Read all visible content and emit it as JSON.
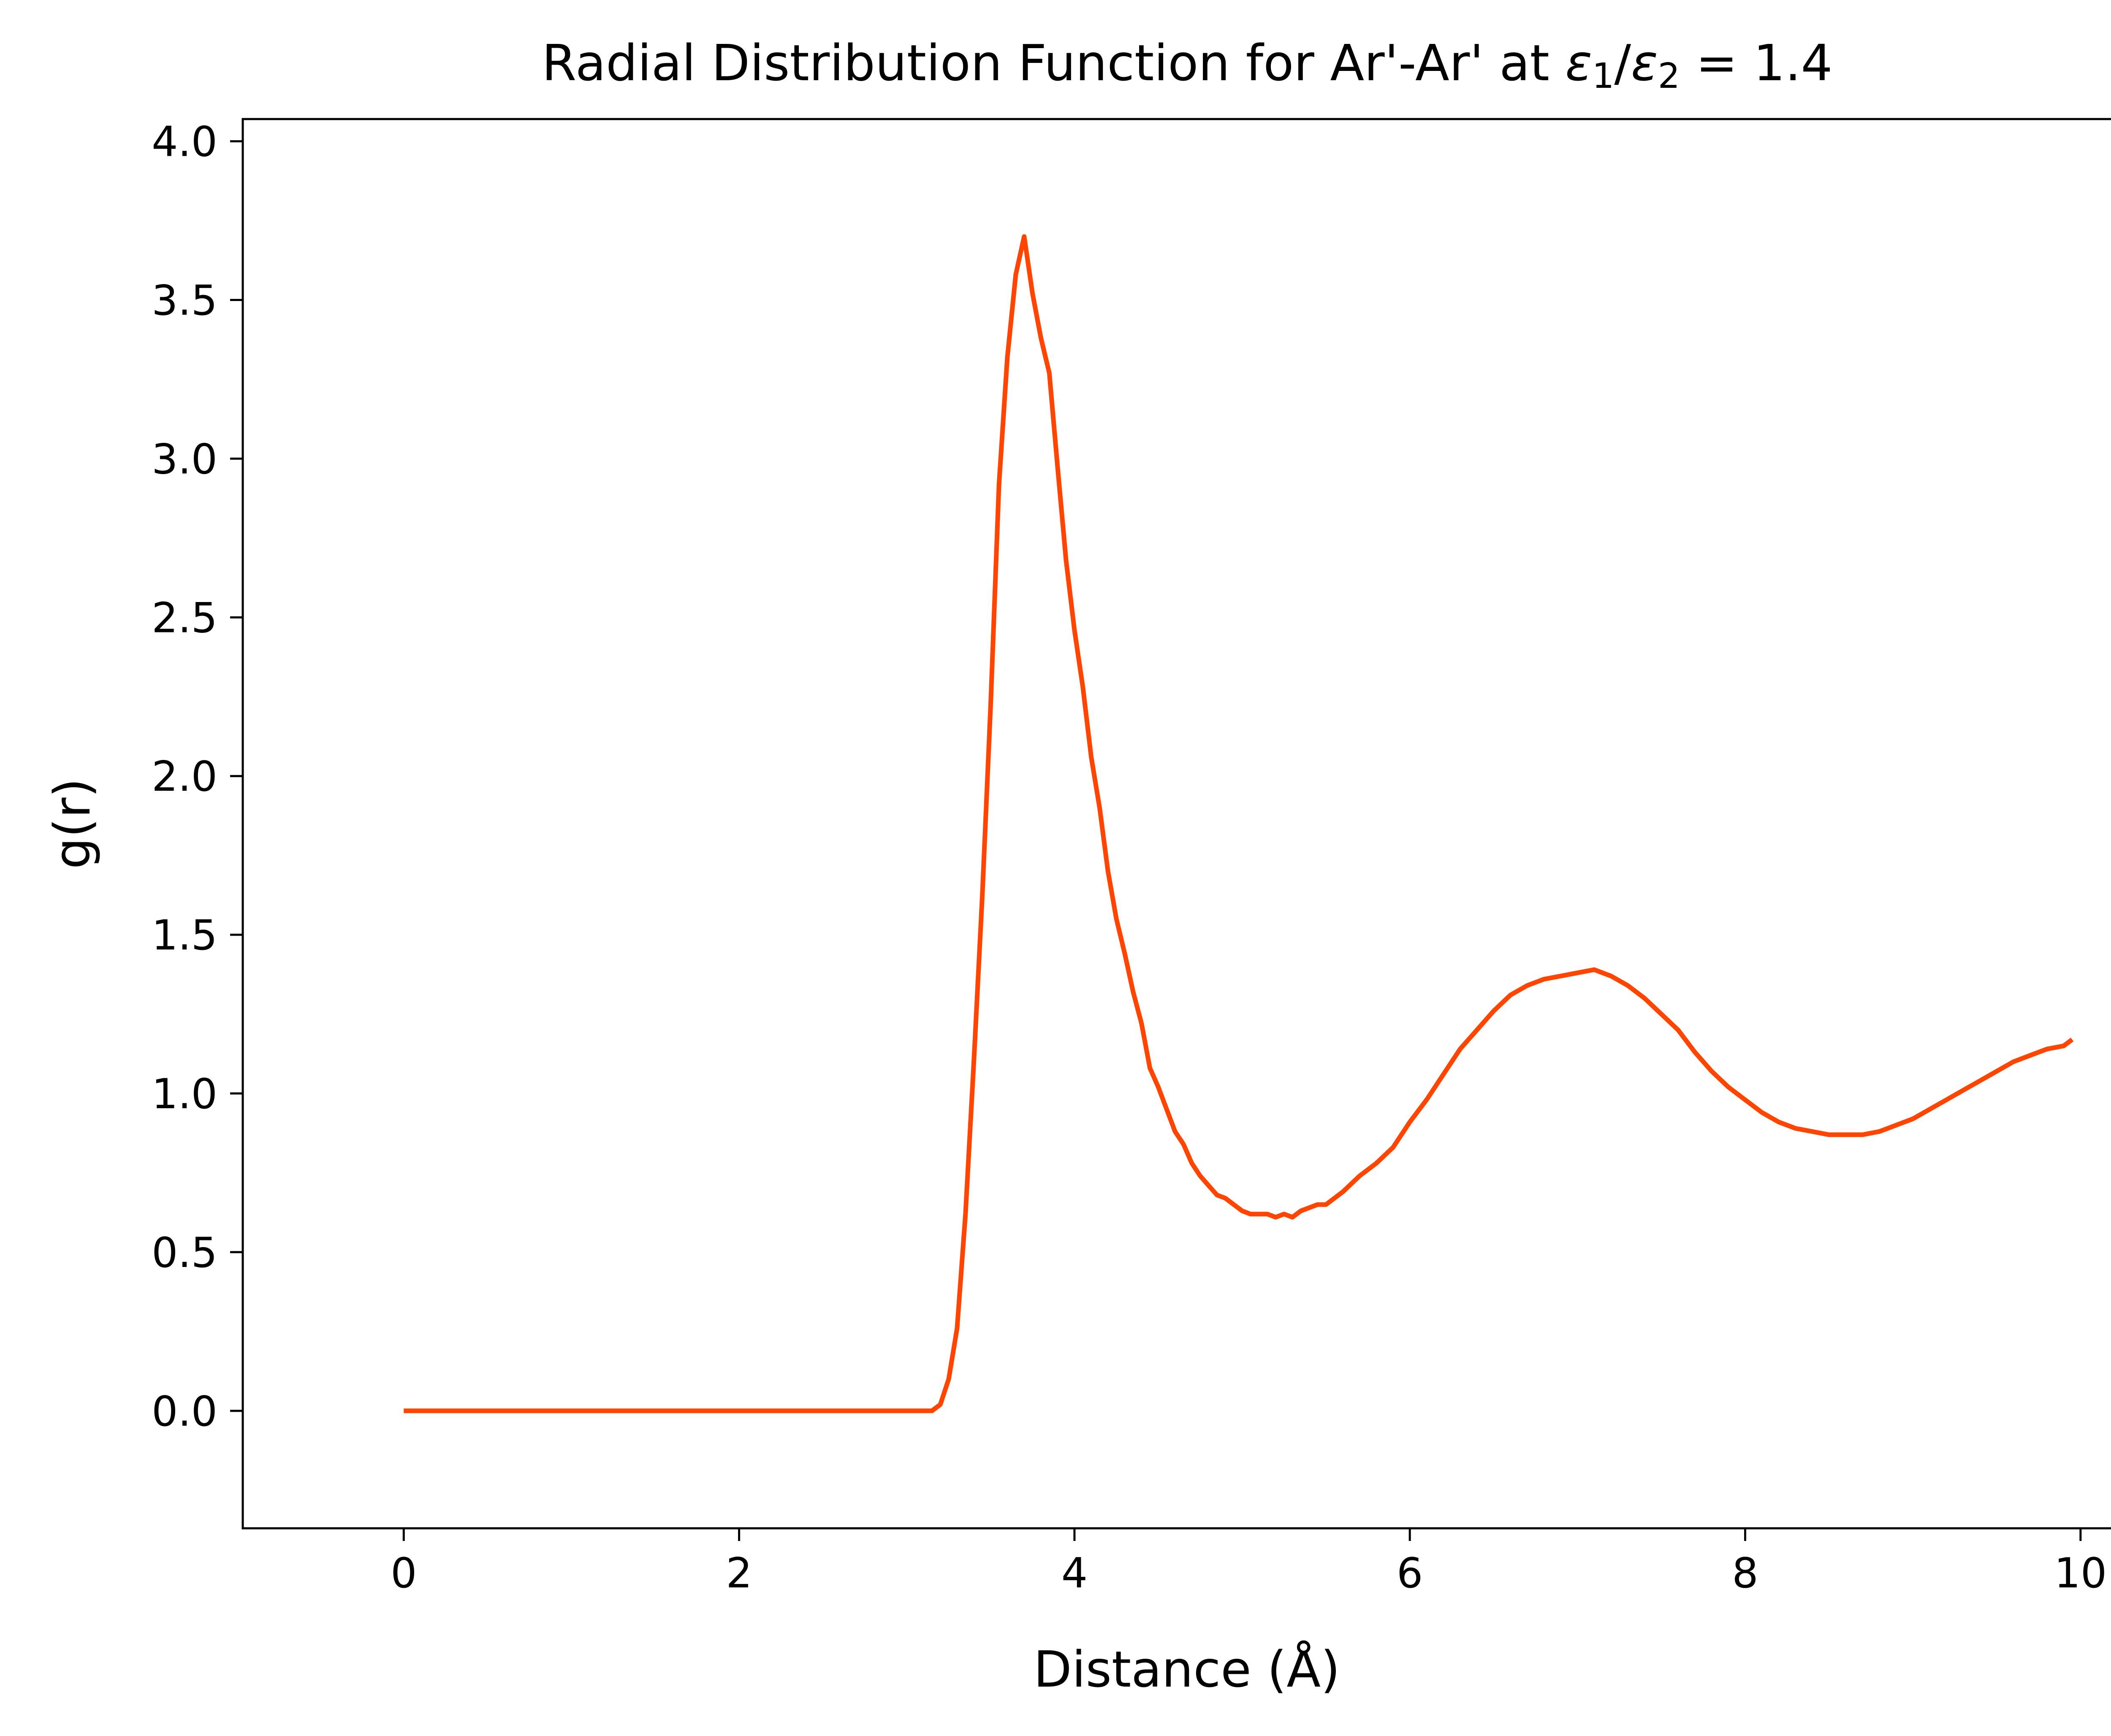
{
  "chart_data": {
    "type": "line",
    "title": {
      "prefix": "Radial Distribution Function for Ar'-Ar' at ",
      "eps": "ε",
      "sub1": "1",
      "slash": "/",
      "sub2": "2",
      "suffix": " = 1.4"
    },
    "xlabel": "Distance (Å)",
    "ylabel": "g(r)",
    "xlim": [
      -0.96,
      10.3
    ],
    "ylim": [
      -0.37,
      4.07
    ],
    "xticks": [
      {
        "value": 0,
        "label": "0"
      },
      {
        "value": 2,
        "label": "2"
      },
      {
        "value": 4,
        "label": "4"
      },
      {
        "value": 6,
        "label": "6"
      },
      {
        "value": 8,
        "label": "8"
      },
      {
        "value": 10,
        "label": "10"
      }
    ],
    "yticks": [
      {
        "value": 0.0,
        "label": "0.0"
      },
      {
        "value": 0.5,
        "label": "0.5"
      },
      {
        "value": 1.0,
        "label": "1.0"
      },
      {
        "value": 1.5,
        "label": "1.5"
      },
      {
        "value": 2.0,
        "label": "2.0"
      },
      {
        "value": 2.5,
        "label": "2.5"
      },
      {
        "value": 3.0,
        "label": "3.0"
      },
      {
        "value": 3.5,
        "label": "3.5"
      },
      {
        "value": 4.0,
        "label": "4.0"
      }
    ],
    "grid": false,
    "legend": "none",
    "series": [
      {
        "color": "#ff4500",
        "x": [
          0.0,
          0.5,
          1.0,
          1.5,
          2.0,
          2.5,
          3.0,
          3.15,
          3.2,
          3.25,
          3.3,
          3.35,
          3.4,
          3.45,
          3.5,
          3.55,
          3.6,
          3.65,
          3.7,
          3.75,
          3.8,
          3.85,
          3.9,
          3.95,
          4.0,
          4.05,
          4.1,
          4.15,
          4.2,
          4.25,
          4.3,
          4.35,
          4.4,
          4.45,
          4.5,
          4.55,
          4.6,
          4.65,
          4.7,
          4.75,
          4.8,
          4.85,
          4.9,
          4.95,
          5.0,
          5.05,
          5.1,
          5.15,
          5.2,
          5.25,
          5.3,
          5.35,
          5.4,
          5.45,
          5.5,
          5.6,
          5.7,
          5.8,
          5.9,
          6.0,
          6.1,
          6.2,
          6.3,
          6.4,
          6.5,
          6.6,
          6.7,
          6.8,
          6.9,
          7.0,
          7.1,
          7.2,
          7.3,
          7.4,
          7.5,
          7.6,
          7.7,
          7.8,
          7.9,
          8.0,
          8.1,
          8.2,
          8.3,
          8.4,
          8.5,
          8.6,
          8.7,
          8.8,
          8.9,
          9.0,
          9.1,
          9.2,
          9.3,
          9.4,
          9.5,
          9.6,
          9.7,
          9.8,
          9.9,
          9.95
        ],
        "y": [
          0.0,
          0.0,
          0.0,
          0.0,
          0.0,
          0.0,
          0.0,
          0.0,
          0.02,
          0.1,
          0.26,
          0.62,
          1.1,
          1.62,
          2.22,
          2.92,
          3.32,
          3.58,
          3.7,
          3.52,
          3.38,
          3.27,
          2.97,
          2.68,
          2.46,
          2.28,
          2.06,
          1.9,
          1.7,
          1.55,
          1.44,
          1.32,
          1.22,
          1.08,
          1.02,
          0.95,
          0.88,
          0.84,
          0.78,
          0.74,
          0.71,
          0.68,
          0.67,
          0.65,
          0.63,
          0.62,
          0.62,
          0.62,
          0.61,
          0.62,
          0.61,
          0.63,
          0.64,
          0.65,
          0.65,
          0.69,
          0.74,
          0.78,
          0.83,
          0.91,
          0.98,
          1.06,
          1.14,
          1.2,
          1.26,
          1.31,
          1.34,
          1.36,
          1.37,
          1.38,
          1.39,
          1.37,
          1.34,
          1.3,
          1.25,
          1.2,
          1.13,
          1.07,
          1.02,
          0.98,
          0.94,
          0.91,
          0.89,
          0.88,
          0.87,
          0.87,
          0.87,
          0.88,
          0.9,
          0.92,
          0.95,
          0.98,
          1.01,
          1.04,
          1.07,
          1.1,
          1.12,
          1.14,
          1.15,
          1.17
        ]
      }
    ]
  }
}
